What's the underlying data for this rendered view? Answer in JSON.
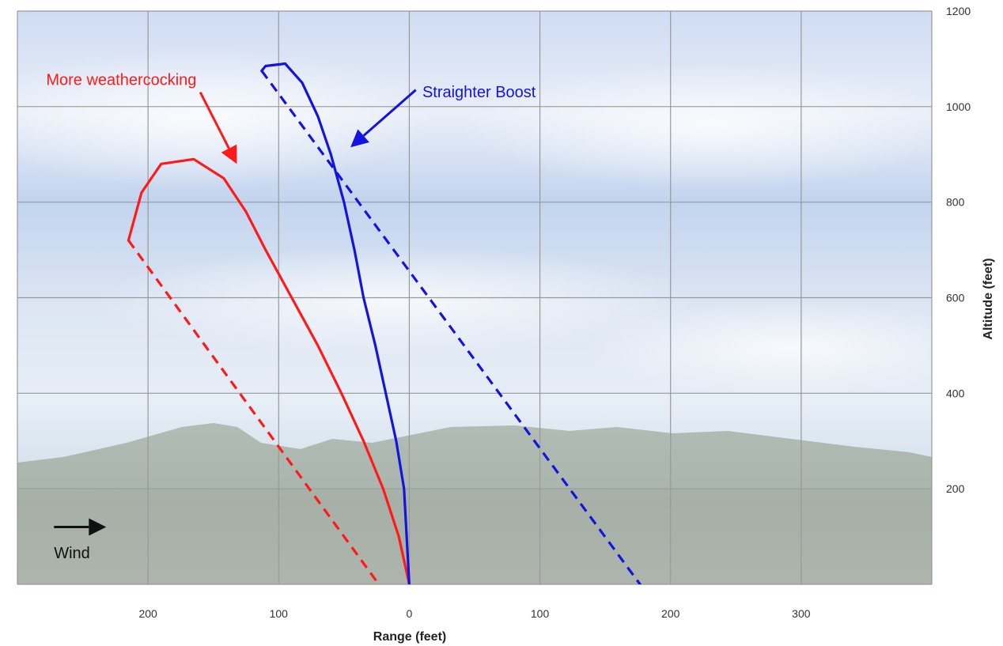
{
  "chart_data": {
    "type": "line",
    "xlabel": "Range (feet)",
    "ylabel": "Altitude (feet)",
    "xlim": [
      -300,
      400
    ],
    "ylim": [
      0,
      1200
    ],
    "x_ticks": [
      -200,
      -100,
      0,
      100,
      200,
      300
    ],
    "x_tick_labels": [
      "200",
      "100",
      "0",
      "100",
      "200",
      "300"
    ],
    "y_ticks": [
      200,
      400,
      600,
      800,
      1000,
      1200
    ],
    "y_tick_labels": [
      "200",
      "400",
      "600",
      "800",
      "1000",
      "1200"
    ],
    "grid": true,
    "series": [
      {
        "color": "#ff1a1a",
        "style": "solid",
        "points": [
          [
            0,
            0
          ],
          [
            -8,
            100
          ],
          [
            -20,
            200
          ],
          [
            -35,
            300
          ],
          [
            -52,
            400
          ],
          [
            -70,
            500
          ],
          [
            -90,
            600
          ],
          [
            -110,
            700
          ],
          [
            -125,
            780
          ],
          [
            -142,
            850
          ],
          [
            -165,
            890
          ],
          [
            -190,
            880
          ],
          [
            -205,
            820
          ],
          [
            -215,
            720
          ]
        ]
      },
      {
        "color": "#ff1a1a",
        "style": "dashed",
        "points": [
          [
            -215,
            720
          ],
          [
            -22,
            -5
          ]
        ]
      },
      {
        "color": "#1414e0",
        "style": "solid",
        "points": [
          [
            0,
            0
          ],
          [
            -4,
            200
          ],
          [
            -10,
            300
          ],
          [
            -18,
            400
          ],
          [
            -26,
            500
          ],
          [
            -35,
            600
          ],
          [
            -42,
            700
          ],
          [
            -50,
            800
          ],
          [
            -60,
            900
          ],
          [
            -70,
            980
          ],
          [
            -82,
            1050
          ],
          [
            -95,
            1090
          ],
          [
            -110,
            1085
          ],
          [
            -113,
            1075
          ]
        ]
      },
      {
        "color": "#1414e0",
        "style": "dashed",
        "points": [
          [
            -113,
            1075
          ],
          [
            178,
            -5
          ]
        ]
      }
    ],
    "annotations": [
      {
        "text": "More weathercocking",
        "color": "#ff1a1a",
        "x": -278,
        "y": 1045,
        "arrow_from": [
          -160,
          1030
        ],
        "arrow_to": [
          -132,
          880
        ]
      },
      {
        "text": "Straighter Boost",
        "color": "#1414e0",
        "x": 10,
        "y": 1020,
        "arrow_from": [
          5,
          1035
        ],
        "arrow_to": [
          -45,
          915
        ]
      },
      {
        "text": "Wind",
        "color": "#111111",
        "x": -272,
        "y": 55,
        "arrow_from": [
          -272,
          120
        ],
        "arrow_to": [
          -232,
          120
        ]
      }
    ]
  }
}
